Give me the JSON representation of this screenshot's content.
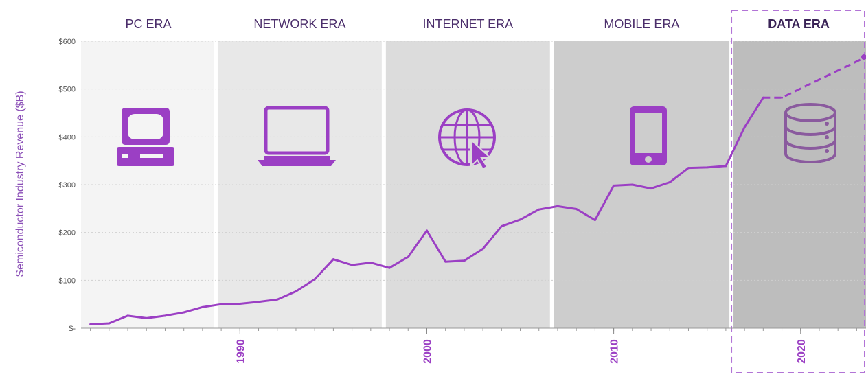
{
  "chart_data": {
    "type": "line",
    "ylabel": "Semiconductor Industry Revenue ($B)",
    "ylim": [
      0,
      600
    ],
    "y_ticks": [
      "$-",
      "$100",
      "$200",
      "$300",
      "$400",
      "$500",
      "$600"
    ],
    "x_ticks": [
      "1990",
      "2000",
      "2010",
      "2020"
    ],
    "x_range": [
      1981.5,
      2023.5
    ],
    "grid": true,
    "eras": [
      {
        "label": "PC ERA",
        "start": 1981.5,
        "end": 1988.7,
        "color": "#f4f4f4",
        "icon": "desktop-computer-icon"
      },
      {
        "label": "NETWORK ERA",
        "start": 1988.7,
        "end": 1997.7,
        "color": "#e8e8e8",
        "icon": "laptop-icon"
      },
      {
        "label": "INTERNET ERA",
        "start": 1997.7,
        "end": 2006.7,
        "color": "#dcdcdc",
        "icon": "globe-cursor-icon"
      },
      {
        "label": "MOBILE ERA",
        "start": 2006.7,
        "end": 2016.3,
        "color": "#cdcdcd",
        "icon": "smartphone-icon"
      },
      {
        "label": "DATA ERA",
        "start": 2016.3,
        "end": 2023.5,
        "color": "#bdbdbd",
        "icon": "database-icon",
        "highlight": true
      }
    ],
    "series": [
      {
        "style": "solid",
        "color": "#9b3fc4",
        "x": [
          1982,
          1983,
          1984,
          1985,
          1986,
          1987,
          1988,
          1989,
          1990,
          1991,
          1992,
          1993,
          1994,
          1995,
          1996,
          1997,
          1998,
          1999,
          2000,
          2001,
          2002,
          2003,
          2004,
          2005,
          2006,
          2007,
          2008,
          2009,
          2010,
          2011,
          2012,
          2013,
          2014,
          2015,
          2016,
          2017,
          2018
        ],
        "values": [
          8,
          10,
          26,
          21,
          26,
          33,
          44,
          50,
          51,
          55,
          60,
          77,
          102,
          144,
          132,
          137,
          126,
          149,
          204,
          139,
          141,
          166,
          213,
          227,
          248,
          255,
          249,
          226,
          298,
          300,
          292,
          305,
          335,
          336,
          339,
          420,
          482
        ]
      },
      {
        "style": "dashed",
        "color": "#9b3fc4",
        "x": [
          2018,
          2019,
          2023.5
        ],
        "values": [
          482,
          482,
          567
        ]
      }
    ]
  }
}
